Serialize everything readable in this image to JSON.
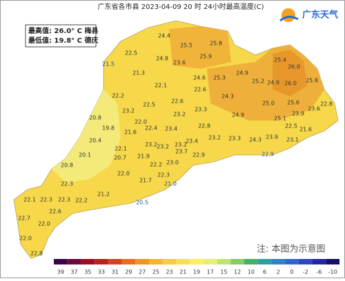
{
  "title": "广东省各市县 2023-04-09 20 时 24小时最高温度(C)",
  "summary": {
    "max": "最高值: 26.0° C 梅县",
    "min": "最低值: 19.8° C 德庆"
  },
  "logo": "广东天气",
  "note": "注: 本图为示意图",
  "stations": [
    24.4,
    25.5,
    25.8,
    25.9,
    22.5,
    24.8,
    23.6,
    21.5,
    21.3,
    22.1,
    24.6,
    25.3,
    24.9,
    25.4,
    26.0,
    25.2,
    24.9,
    26.0,
    25.8,
    22.2,
    22.6,
    24.3,
    23.2,
    22.5,
    22.6,
    25.0,
    25.6,
    23.6,
    22.8,
    23.3,
    23.2,
    24.9,
    23.9,
    20.8,
    19.8,
    21.6,
    22.0,
    22.4,
    23.4,
    22.8,
    25.1,
    22.5,
    21.6,
    20.4,
    23.2,
    23.2,
    23.4,
    23.2,
    23.3,
    24.3,
    23.9,
    23.1,
    20.1,
    22.1,
    20.7,
    21.9,
    23.2,
    23.7,
    23.0,
    22.9,
    22.2,
    22.9,
    20.8,
    22.0,
    21.7,
    22.3,
    21.0,
    22.3,
    21.2,
    22.1,
    22.3,
    22.3,
    22.2,
    20.5,
    22.6,
    22.7,
    22.0,
    22.0,
    22.8
  ],
  "legend": {
    "ticks": [
      39,
      37,
      35,
      33,
      31,
      29,
      27,
      25,
      23,
      21,
      19,
      17,
      15,
      12,
      10,
      6,
      2,
      0,
      -2,
      -6,
      -10
    ],
    "colors": [
      "#3a0648",
      "#6e0a3a",
      "#9c0c24",
      "#c41c1c",
      "#e03c1e",
      "#ee6a1e",
      "#f29422",
      "#f5b42a",
      "#f8cc32",
      "#f9e044",
      "#fbef64",
      "#e6ef72",
      "#bfe46c",
      "#86cc62",
      "#44b066",
      "#2c9ea6",
      "#2f82c6",
      "#2f64d2",
      "#2f46c2",
      "#2226a2",
      "#12106a"
    ]
  }
}
